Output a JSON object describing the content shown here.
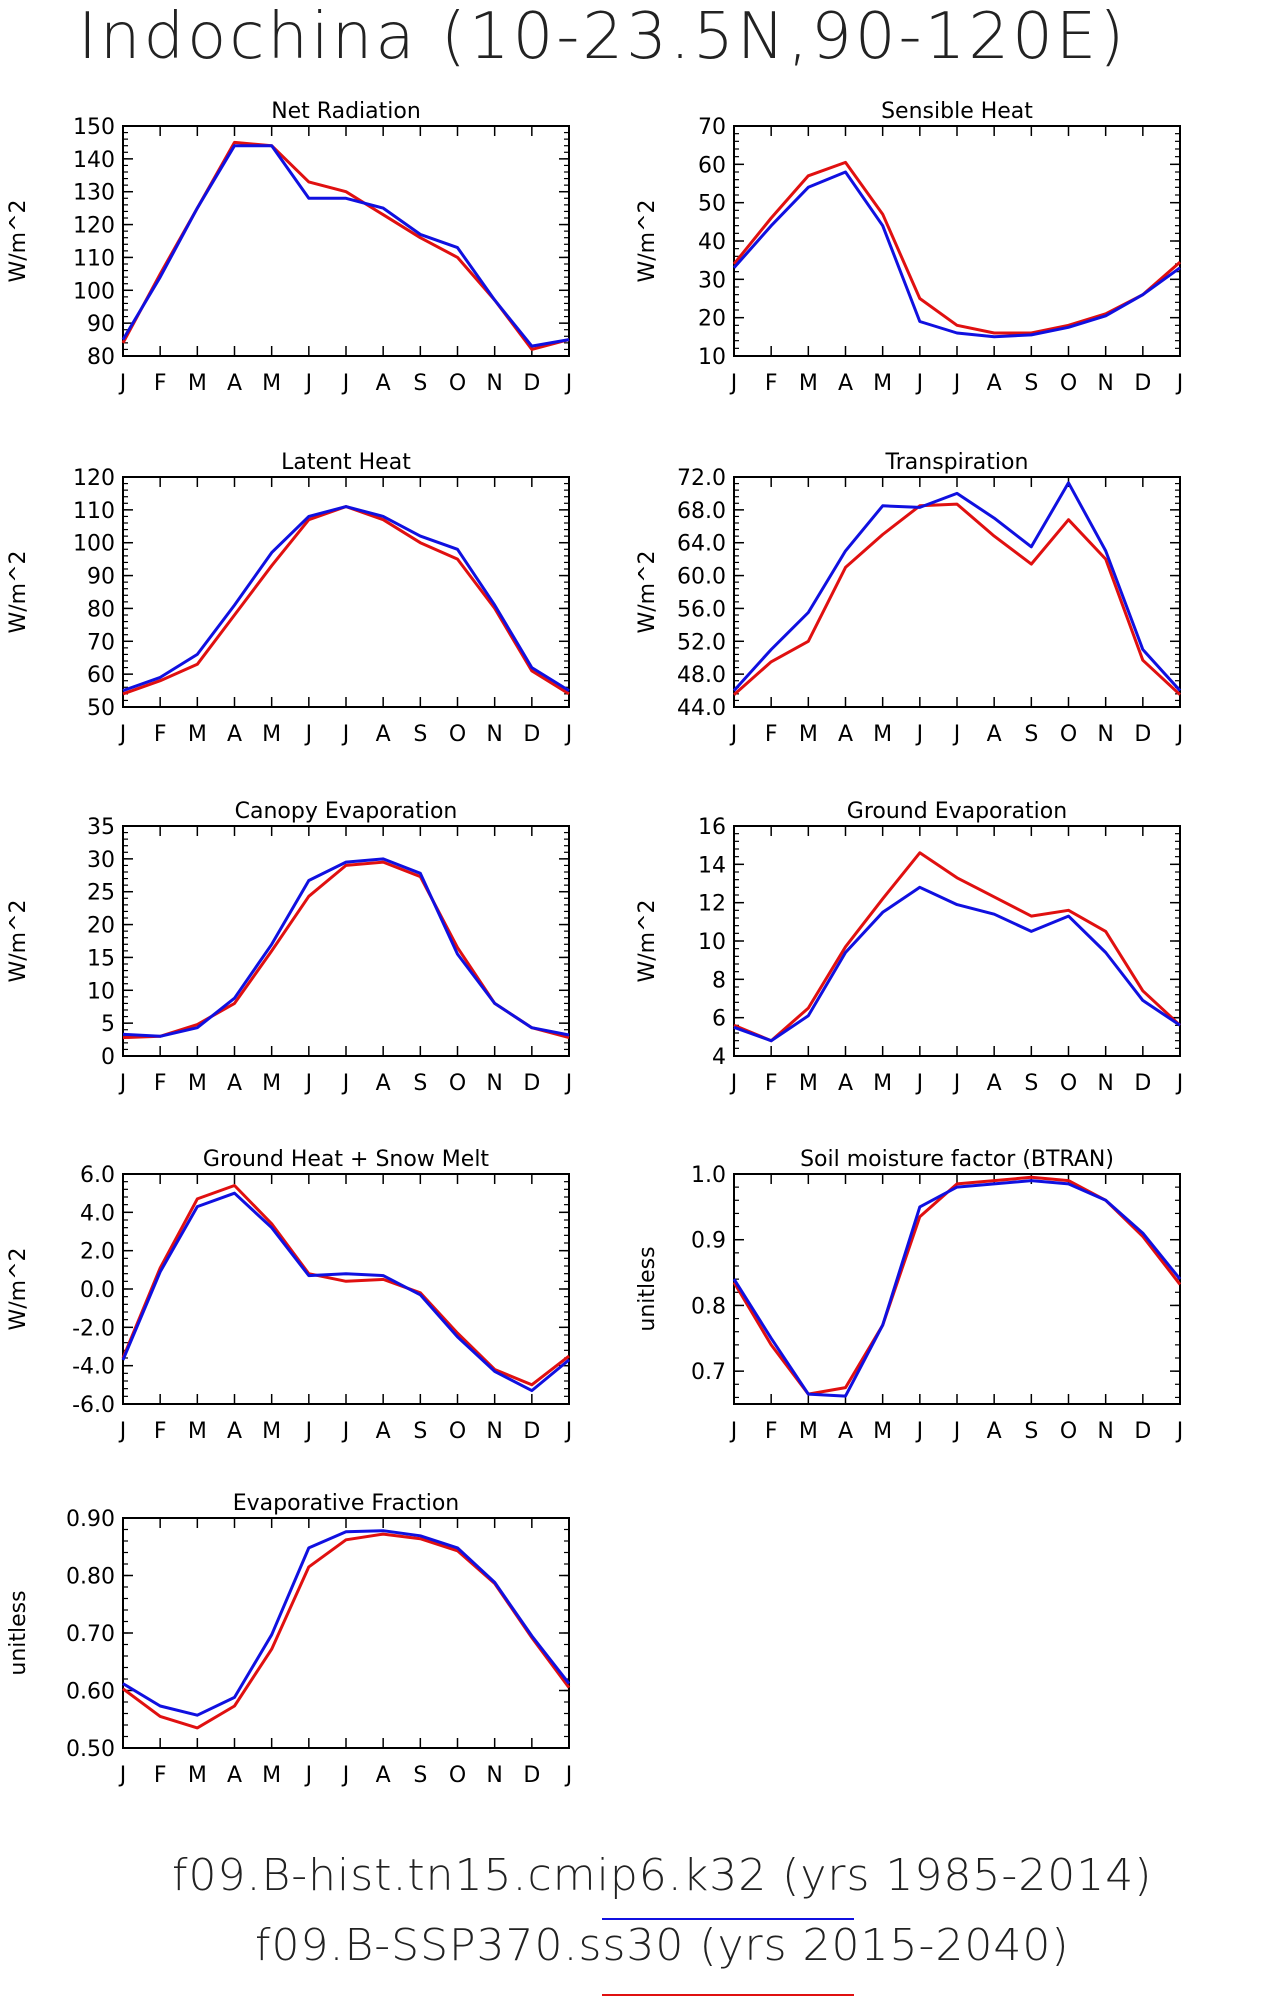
{
  "title": "Indochina (10-23.5N,90-120E)",
  "months": [
    "J",
    "F",
    "M",
    "A",
    "M",
    "J",
    "J",
    "A",
    "S",
    "O",
    "N",
    "D",
    "J"
  ],
  "colors": {
    "hist": "#1010e0",
    "ssp": "#e01010"
  },
  "legend": [
    {
      "label": "f09.B-hist.tn15.cmip6.k32 (yrs 1985-2014)",
      "color": "#1010e0"
    },
    {
      "label": "f09.B-SSP370.ss30 (yrs 2015-2040)",
      "color": "#e01010"
    }
  ],
  "chart_data": [
    {
      "type": "line",
      "title": "Net Radiation",
      "ylabel": "W/m^2",
      "ylim": [
        80,
        150
      ],
      "yticks": [
        "80",
        "90",
        "100",
        "110",
        "120",
        "130",
        "140",
        "150"
      ],
      "series": [
        {
          "values": [
            85,
            104,
            125,
            144,
            144,
            128,
            128,
            125,
            117,
            113,
            97,
            83,
            85
          ]
        },
        {
          "values": [
            84,
            105,
            125,
            145,
            144,
            133,
            130,
            123,
            116,
            110,
            97,
            82,
            85
          ]
        }
      ]
    },
    {
      "type": "line",
      "title": "Sensible Heat",
      "ylabel": "W/m^2",
      "ylim": [
        10,
        70
      ],
      "yticks": [
        "10",
        "20",
        "30",
        "40",
        "50",
        "60",
        "70"
      ],
      "series": [
        {
          "values": [
            33,
            44,
            54,
            58,
            44,
            19,
            16,
            15,
            15.5,
            17.5,
            20.5,
            26,
            33
          ]
        },
        {
          "values": [
            34,
            46,
            57,
            60.5,
            47,
            25,
            18,
            16,
            16,
            18,
            21,
            26,
            34.5
          ]
        }
      ]
    },
    {
      "type": "line",
      "title": "Latent Heat",
      "ylabel": "W/m^2",
      "ylim": [
        50,
        120
      ],
      "yticks": [
        "50",
        "60",
        "70",
        "80",
        "90",
        "100",
        "110",
        "120"
      ],
      "series": [
        {
          "values": [
            55,
            59,
            66,
            81,
            97,
            108,
            111,
            108,
            102,
            98,
            81,
            62,
            55
          ]
        },
        {
          "values": [
            54,
            58,
            63,
            78,
            93,
            107,
            111,
            107,
            100,
            95,
            80,
            61,
            54
          ]
        }
      ]
    },
    {
      "type": "line",
      "title": "Transpiration",
      "ylabel": "W/m^2",
      "ylim": [
        44,
        72
      ],
      "yticks": [
        "44.0",
        "48.0",
        "52.0",
        "56.0",
        "60.0",
        "64.0",
        "68.0",
        "72.0"
      ],
      "series": [
        {
          "values": [
            46,
            51,
            55.5,
            63,
            68.5,
            68.3,
            70,
            67,
            63.5,
            71.3,
            63,
            51,
            46
          ]
        },
        {
          "values": [
            45.5,
            49.5,
            52,
            61,
            65,
            68.5,
            68.7,
            64.8,
            61.4,
            66.8,
            62,
            49.7,
            45.5
          ]
        }
      ]
    },
    {
      "type": "line",
      "title": "Canopy Evaporation",
      "ylabel": "W/m^2",
      "ylim": [
        0,
        35
      ],
      "yticks": [
        "0",
        "5",
        "10",
        "15",
        "20",
        "25",
        "30",
        "35"
      ],
      "series": [
        {
          "values": [
            3.3,
            3.0,
            4.3,
            8.8,
            17,
            26.7,
            29.5,
            30,
            27.8,
            15.5,
            8,
            4.3,
            3.2
          ]
        },
        {
          "values": [
            2.8,
            3.0,
            4.8,
            8.0,
            16,
            24.3,
            29,
            29.5,
            27.3,
            16.5,
            8,
            4.3,
            2.8
          ]
        }
      ]
    },
    {
      "type": "line",
      "title": "Ground Evaporation",
      "ylabel": "W/m^2",
      "ylim": [
        4,
        16
      ],
      "yticks": [
        "4",
        "6",
        "8",
        "10",
        "12",
        "14",
        "16"
      ],
      "series": [
        {
          "values": [
            5.5,
            4.8,
            6.1,
            9.4,
            11.5,
            12.8,
            11.9,
            11.4,
            10.5,
            11.3,
            9.4,
            6.9,
            5.6
          ]
        },
        {
          "values": [
            5.6,
            4.8,
            6.5,
            9.7,
            12.2,
            14.6,
            13.3,
            12.3,
            11.3,
            11.6,
            10.5,
            7.4,
            5.6
          ]
        }
      ]
    },
    {
      "type": "line",
      "title": "Ground Heat + Snow Melt",
      "ylabel": "W/m^2",
      "ylim": [
        -6,
        6
      ],
      "yticks": [
        "-6.0",
        "-4.0",
        "-2.0",
        "0.0",
        "2.0",
        "4.0",
        "6.0"
      ],
      "series": [
        {
          "values": [
            -3.7,
            0.9,
            4.3,
            5.0,
            3.2,
            0.7,
            0.8,
            0.7,
            -0.3,
            -2.5,
            -4.3,
            -5.3,
            -3.7
          ]
        },
        {
          "values": [
            -3.6,
            1.1,
            4.7,
            5.4,
            3.4,
            0.8,
            0.4,
            0.5,
            -0.2,
            -2.3,
            -4.2,
            -5.0,
            -3.5
          ]
        }
      ]
    },
    {
      "type": "line",
      "title": "Soil moisture factor (BTRAN)",
      "ylabel": "unitless",
      "ylim": [
        0.65,
        1.0
      ],
      "yticks": [
        "0.7",
        "0.8",
        "0.9",
        "1.0"
      ],
      "ytick_values": [
        0.7,
        0.8,
        0.9,
        1.0
      ],
      "series": [
        {
          "values": [
            0.84,
            0.75,
            0.665,
            0.662,
            0.77,
            0.95,
            0.98,
            0.985,
            0.99,
            0.985,
            0.96,
            0.91,
            0.84
          ]
        },
        {
          "values": [
            0.835,
            0.74,
            0.665,
            0.675,
            0.77,
            0.935,
            0.985,
            0.99,
            0.995,
            0.99,
            0.96,
            0.905,
            0.832
          ]
        }
      ]
    },
    {
      "type": "line",
      "title": "Evaporative Fraction",
      "ylabel": "unitless",
      "ylim": [
        0.5,
        0.9
      ],
      "yticks": [
        "0.50",
        "0.60",
        "0.70",
        "0.80",
        "0.90"
      ],
      "series": [
        {
          "values": [
            0.612,
            0.573,
            0.557,
            0.588,
            0.697,
            0.848,
            0.876,
            0.878,
            0.869,
            0.848,
            0.788,
            0.695,
            0.612
          ]
        },
        {
          "values": [
            0.603,
            0.555,
            0.535,
            0.573,
            0.672,
            0.815,
            0.862,
            0.872,
            0.864,
            0.843,
            0.786,
            0.692,
            0.605
          ]
        }
      ]
    }
  ]
}
